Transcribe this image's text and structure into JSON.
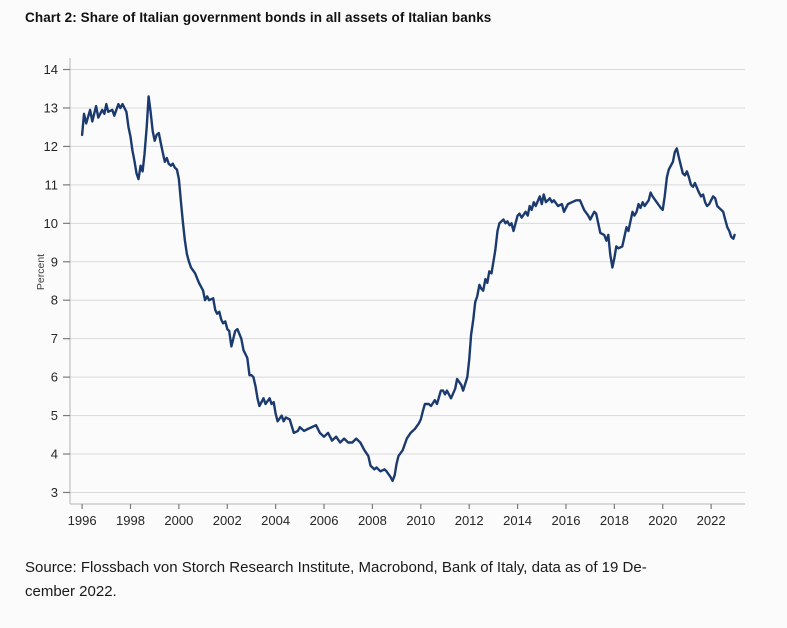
{
  "chart_data": {
    "type": "line",
    "title": "Chart 2: Share of Italian government bonds in all assets of Italian banks",
    "ylabel": "Percent",
    "xlabel": "",
    "x_tick_labels": [
      1996,
      1998,
      2000,
      2002,
      2004,
      2006,
      2008,
      2010,
      2012,
      2014,
      2016,
      2018,
      2020,
      2022
    ],
    "y_tick_labels": [
      14,
      13,
      12,
      11,
      10,
      9,
      8,
      7,
      6,
      5,
      4,
      3
    ],
    "xlim": [
      1995.5,
      2023.4
    ],
    "ylim": [
      2.7,
      14.3
    ],
    "grid": true,
    "legend_position": "none",
    "line_color": "#1b3a6e",
    "series": [
      {
        "name": "Share of Italian government bonds in all assets of Italian banks (percent)",
        "points": [
          [
            1996.0,
            12.3
          ],
          [
            1996.08,
            12.85
          ],
          [
            1996.17,
            12.6
          ],
          [
            1996.33,
            12.95
          ],
          [
            1996.42,
            12.65
          ],
          [
            1996.58,
            13.05
          ],
          [
            1996.67,
            12.75
          ],
          [
            1996.83,
            12.95
          ],
          [
            1996.92,
            12.85
          ],
          [
            1997.0,
            13.1
          ],
          [
            1997.08,
            12.9
          ],
          [
            1997.25,
            12.95
          ],
          [
            1997.33,
            12.8
          ],
          [
            1997.5,
            13.1
          ],
          [
            1997.58,
            13.0
          ],
          [
            1997.67,
            13.1
          ],
          [
            1997.83,
            12.9
          ],
          [
            1997.92,
            12.5
          ],
          [
            1998.0,
            12.25
          ],
          [
            1998.08,
            11.9
          ],
          [
            1998.17,
            11.6
          ],
          [
            1998.25,
            11.3
          ],
          [
            1998.33,
            11.15
          ],
          [
            1998.42,
            11.5
          ],
          [
            1998.5,
            11.35
          ],
          [
            1998.58,
            11.8
          ],
          [
            1998.67,
            12.5
          ],
          [
            1998.75,
            13.3
          ],
          [
            1998.83,
            12.9
          ],
          [
            1998.92,
            12.4
          ],
          [
            1999.0,
            12.15
          ],
          [
            1999.08,
            12.3
          ],
          [
            1999.17,
            12.35
          ],
          [
            1999.25,
            12.1
          ],
          [
            1999.33,
            11.85
          ],
          [
            1999.42,
            11.6
          ],
          [
            1999.5,
            11.7
          ],
          [
            1999.58,
            11.55
          ],
          [
            1999.67,
            11.5
          ],
          [
            1999.75,
            11.55
          ],
          [
            1999.83,
            11.45
          ],
          [
            1999.92,
            11.4
          ],
          [
            2000.0,
            11.15
          ],
          [
            2000.08,
            10.6
          ],
          [
            2000.17,
            10.0
          ],
          [
            2000.25,
            9.55
          ],
          [
            2000.33,
            9.2
          ],
          [
            2000.42,
            9.0
          ],
          [
            2000.5,
            8.85
          ],
          [
            2000.67,
            8.7
          ],
          [
            2000.83,
            8.45
          ],
          [
            2001.0,
            8.25
          ],
          [
            2001.08,
            8.0
          ],
          [
            2001.17,
            8.1
          ],
          [
            2001.25,
            8.0
          ],
          [
            2001.42,
            8.05
          ],
          [
            2001.5,
            7.75
          ],
          [
            2001.58,
            7.65
          ],
          [
            2001.67,
            7.7
          ],
          [
            2001.75,
            7.5
          ],
          [
            2001.83,
            7.4
          ],
          [
            2001.92,
            7.45
          ],
          [
            2002.0,
            7.25
          ],
          [
            2002.08,
            7.2
          ],
          [
            2002.17,
            6.8
          ],
          [
            2002.33,
            7.2
          ],
          [
            2002.42,
            7.25
          ],
          [
            2002.58,
            7.0
          ],
          [
            2002.67,
            6.7
          ],
          [
            2002.83,
            6.5
          ],
          [
            2002.92,
            6.05
          ],
          [
            2003.0,
            6.05
          ],
          [
            2003.08,
            6.0
          ],
          [
            2003.17,
            5.75
          ],
          [
            2003.25,
            5.45
          ],
          [
            2003.33,
            5.25
          ],
          [
            2003.5,
            5.45
          ],
          [
            2003.58,
            5.3
          ],
          [
            2003.75,
            5.45
          ],
          [
            2003.83,
            5.3
          ],
          [
            2003.92,
            5.35
          ],
          [
            2004.0,
            5.05
          ],
          [
            2004.08,
            4.85
          ],
          [
            2004.25,
            5.0
          ],
          [
            2004.33,
            4.85
          ],
          [
            2004.42,
            4.95
          ],
          [
            2004.58,
            4.9
          ],
          [
            2004.75,
            4.55
          ],
          [
            2004.92,
            4.6
          ],
          [
            2005.0,
            4.7
          ],
          [
            2005.17,
            4.6
          ],
          [
            2005.33,
            4.65
          ],
          [
            2005.5,
            4.7
          ],
          [
            2005.67,
            4.75
          ],
          [
            2005.83,
            4.55
          ],
          [
            2006.0,
            4.45
          ],
          [
            2006.17,
            4.55
          ],
          [
            2006.33,
            4.35
          ],
          [
            2006.5,
            4.45
          ],
          [
            2006.67,
            4.3
          ],
          [
            2006.83,
            4.4
          ],
          [
            2007.0,
            4.3
          ],
          [
            2007.17,
            4.3
          ],
          [
            2007.33,
            4.4
          ],
          [
            2007.5,
            4.3
          ],
          [
            2007.67,
            4.1
          ],
          [
            2007.83,
            3.95
          ],
          [
            2007.92,
            3.7
          ],
          [
            2008.08,
            3.6
          ],
          [
            2008.17,
            3.65
          ],
          [
            2008.33,
            3.55
          ],
          [
            2008.5,
            3.6
          ],
          [
            2008.58,
            3.55
          ],
          [
            2008.75,
            3.4
          ],
          [
            2008.83,
            3.3
          ],
          [
            2008.92,
            3.45
          ],
          [
            2009.0,
            3.75
          ],
          [
            2009.08,
            3.95
          ],
          [
            2009.25,
            4.1
          ],
          [
            2009.42,
            4.4
          ],
          [
            2009.58,
            4.55
          ],
          [
            2009.75,
            4.65
          ],
          [
            2009.92,
            4.8
          ],
          [
            2010.0,
            4.9
          ],
          [
            2010.08,
            5.1
          ],
          [
            2010.17,
            5.3
          ],
          [
            2010.33,
            5.3
          ],
          [
            2010.42,
            5.25
          ],
          [
            2010.58,
            5.4
          ],
          [
            2010.67,
            5.3
          ],
          [
            2010.83,
            5.65
          ],
          [
            2010.92,
            5.65
          ],
          [
            2011.0,
            5.55
          ],
          [
            2011.08,
            5.65
          ],
          [
            2011.25,
            5.45
          ],
          [
            2011.42,
            5.7
          ],
          [
            2011.5,
            5.95
          ],
          [
            2011.67,
            5.8
          ],
          [
            2011.75,
            5.65
          ],
          [
            2011.92,
            6.0
          ],
          [
            2012.0,
            6.45
          ],
          [
            2012.08,
            7.1
          ],
          [
            2012.17,
            7.5
          ],
          [
            2012.25,
            7.95
          ],
          [
            2012.33,
            8.1
          ],
          [
            2012.42,
            8.4
          ],
          [
            2012.5,
            8.3
          ],
          [
            2012.58,
            8.25
          ],
          [
            2012.67,
            8.55
          ],
          [
            2012.75,
            8.45
          ],
          [
            2012.83,
            8.75
          ],
          [
            2012.92,
            8.7
          ],
          [
            2013.0,
            9.0
          ],
          [
            2013.08,
            9.3
          ],
          [
            2013.17,
            9.8
          ],
          [
            2013.25,
            10.0
          ],
          [
            2013.33,
            10.05
          ],
          [
            2013.42,
            10.1
          ],
          [
            2013.5,
            10.0
          ],
          [
            2013.58,
            10.05
          ],
          [
            2013.67,
            9.95
          ],
          [
            2013.75,
            10.0
          ],
          [
            2013.83,
            9.8
          ],
          [
            2014.0,
            10.2
          ],
          [
            2014.08,
            10.25
          ],
          [
            2014.17,
            10.15
          ],
          [
            2014.33,
            10.3
          ],
          [
            2014.42,
            10.2
          ],
          [
            2014.5,
            10.45
          ],
          [
            2014.58,
            10.35
          ],
          [
            2014.67,
            10.55
          ],
          [
            2014.75,
            10.45
          ],
          [
            2014.92,
            10.7
          ],
          [
            2015.0,
            10.5
          ],
          [
            2015.08,
            10.75
          ],
          [
            2015.17,
            10.55
          ],
          [
            2015.33,
            10.65
          ],
          [
            2015.42,
            10.55
          ],
          [
            2015.5,
            10.6
          ],
          [
            2015.67,
            10.45
          ],
          [
            2015.83,
            10.5
          ],
          [
            2015.92,
            10.3
          ],
          [
            2016.08,
            10.5
          ],
          [
            2016.25,
            10.55
          ],
          [
            2016.42,
            10.6
          ],
          [
            2016.58,
            10.6
          ],
          [
            2016.75,
            10.35
          ],
          [
            2016.92,
            10.2
          ],
          [
            2017.0,
            10.1
          ],
          [
            2017.17,
            10.3
          ],
          [
            2017.25,
            10.25
          ],
          [
            2017.42,
            9.75
          ],
          [
            2017.58,
            9.7
          ],
          [
            2017.67,
            9.55
          ],
          [
            2017.75,
            9.7
          ],
          [
            2017.83,
            9.2
          ],
          [
            2017.92,
            8.85
          ],
          [
            2018.0,
            9.1
          ],
          [
            2018.08,
            9.4
          ],
          [
            2018.17,
            9.35
          ],
          [
            2018.33,
            9.4
          ],
          [
            2018.5,
            9.9
          ],
          [
            2018.58,
            9.8
          ],
          [
            2018.75,
            10.3
          ],
          [
            2018.83,
            10.2
          ],
          [
            2018.92,
            10.3
          ],
          [
            2019.0,
            10.5
          ],
          [
            2019.08,
            10.4
          ],
          [
            2019.17,
            10.55
          ],
          [
            2019.25,
            10.45
          ],
          [
            2019.42,
            10.6
          ],
          [
            2019.5,
            10.8
          ],
          [
            2019.58,
            10.7
          ],
          [
            2019.75,
            10.55
          ],
          [
            2019.92,
            10.4
          ],
          [
            2020.0,
            10.35
          ],
          [
            2020.08,
            10.7
          ],
          [
            2020.17,
            11.2
          ],
          [
            2020.25,
            11.4
          ],
          [
            2020.42,
            11.6
          ],
          [
            2020.5,
            11.85
          ],
          [
            2020.58,
            11.95
          ],
          [
            2020.67,
            11.7
          ],
          [
            2020.75,
            11.5
          ],
          [
            2020.83,
            11.3
          ],
          [
            2020.92,
            11.25
          ],
          [
            2021.0,
            11.35
          ],
          [
            2021.08,
            11.2
          ],
          [
            2021.17,
            11.0
          ],
          [
            2021.25,
            10.95
          ],
          [
            2021.33,
            11.05
          ],
          [
            2021.5,
            10.8
          ],
          [
            2021.58,
            10.7
          ],
          [
            2021.67,
            10.75
          ],
          [
            2021.75,
            10.55
          ],
          [
            2021.83,
            10.45
          ],
          [
            2021.92,
            10.5
          ],
          [
            2022.0,
            10.6
          ],
          [
            2022.08,
            10.7
          ],
          [
            2022.17,
            10.65
          ],
          [
            2022.25,
            10.45
          ],
          [
            2022.33,
            10.4
          ],
          [
            2022.42,
            10.35
          ],
          [
            2022.5,
            10.3
          ],
          [
            2022.58,
            10.1
          ],
          [
            2022.67,
            9.9
          ],
          [
            2022.75,
            9.8
          ],
          [
            2022.83,
            9.65
          ],
          [
            2022.92,
            9.6
          ],
          [
            2022.97,
            9.7
          ]
        ]
      }
    ]
  },
  "source_note": {
    "line1": "Source: Flossbach von Storch Research Institute, Macrobond, Bank of Italy, data as of 19 De-",
    "line2": "cember 2022."
  },
  "colors": {
    "background": "#fbfbfb",
    "grid": "#d9d9d9",
    "axis": "#b5b5b5",
    "tick": "#7a7a7a",
    "tick_text": "#262626",
    "title_text": "#111111"
  }
}
